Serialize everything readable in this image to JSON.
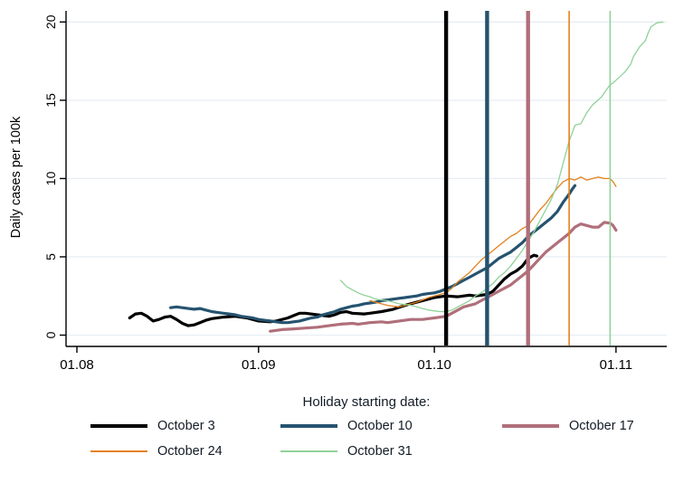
{
  "chart_data": {
    "type": "line",
    "title": "",
    "xlabel": "",
    "ylabel": "Daily cases per 100k",
    "ylim": [
      0,
      20
    ],
    "x_unit": "days since Aug 1 (01.08)",
    "grid": "horizontal",
    "grid_color": "#e7eef3",
    "axis_color": "#000000",
    "legend_title": "Holiday starting date:",
    "legend_position": "bottom",
    "xticks": [
      {
        "day": 0,
        "label": "01.08"
      },
      {
        "day": 31,
        "label": "01.09"
      },
      {
        "day": 61,
        "label": "01.10"
      },
      {
        "day": 92,
        "label": "01.11"
      }
    ],
    "yticks": [
      {
        "value": 0,
        "label": "0"
      },
      {
        "value": 5,
        "label": "5"
      },
      {
        "value": 10,
        "label": "10"
      },
      {
        "value": 15,
        "label": "15"
      },
      {
        "value": 20,
        "label": "20"
      }
    ],
    "series": [
      {
        "name": "October 3",
        "color": "#000000",
        "line_width": "thick",
        "holiday_start_day": 63,
        "points": [
          [
            9,
            1.1
          ],
          [
            10,
            1.35
          ],
          [
            11,
            1.4
          ],
          [
            12,
            1.2
          ],
          [
            13,
            0.9
          ],
          [
            14,
            1.0
          ],
          [
            15,
            1.15
          ],
          [
            16,
            1.2
          ],
          [
            17,
            1.0
          ],
          [
            18,
            0.75
          ],
          [
            19,
            0.6
          ],
          [
            20,
            0.65
          ],
          [
            21,
            0.8
          ],
          [
            22,
            0.95
          ],
          [
            23,
            1.05
          ],
          [
            25,
            1.15
          ],
          [
            27,
            1.2
          ],
          [
            29,
            1.1
          ],
          [
            31,
            0.9
          ],
          [
            33,
            0.85
          ],
          [
            34,
            0.9
          ],
          [
            36,
            1.1
          ],
          [
            37,
            1.25
          ],
          [
            38,
            1.4
          ],
          [
            39,
            1.4
          ],
          [
            41,
            1.3
          ],
          [
            43,
            1.2
          ],
          [
            44,
            1.3
          ],
          [
            45,
            1.45
          ],
          [
            46,
            1.5
          ],
          [
            47,
            1.4
          ],
          [
            49,
            1.35
          ],
          [
            50,
            1.4
          ],
          [
            52,
            1.5
          ],
          [
            54,
            1.65
          ],
          [
            56,
            1.9
          ],
          [
            58,
            2.1
          ],
          [
            60,
            2.3
          ],
          [
            61,
            2.4
          ],
          [
            62,
            2.45
          ],
          [
            63,
            2.5
          ],
          [
            65,
            2.45
          ],
          [
            66,
            2.5
          ],
          [
            67,
            2.55
          ],
          [
            68,
            2.5
          ],
          [
            69,
            2.55
          ],
          [
            70,
            2.6
          ],
          [
            71,
            2.8
          ],
          [
            72,
            3.2
          ],
          [
            73,
            3.6
          ],
          [
            74,
            3.9
          ],
          [
            75,
            4.1
          ],
          [
            76,
            4.4
          ],
          [
            77,
            4.9
          ],
          [
            78,
            5.1
          ],
          [
            78.5,
            5.05
          ]
        ]
      },
      {
        "name": "October 10",
        "color": "#25536f",
        "line_width": "thick",
        "holiday_start_day": 70,
        "points": [
          [
            16,
            1.75
          ],
          [
            17,
            1.8
          ],
          [
            18,
            1.75
          ],
          [
            19,
            1.7
          ],
          [
            20,
            1.65
          ],
          [
            21,
            1.7
          ],
          [
            22,
            1.6
          ],
          [
            23,
            1.5
          ],
          [
            24,
            1.45
          ],
          [
            25,
            1.4
          ],
          [
            26,
            1.35
          ],
          [
            27,
            1.3
          ],
          [
            28,
            1.2
          ],
          [
            29,
            1.15
          ],
          [
            30,
            1.1
          ],
          [
            31,
            1.0
          ],
          [
            32,
            0.95
          ],
          [
            33,
            0.9
          ],
          [
            34,
            0.85
          ],
          [
            35,
            0.8
          ],
          [
            36,
            0.8
          ],
          [
            37,
            0.85
          ],
          [
            38,
            0.9
          ],
          [
            39,
            1.0
          ],
          [
            40,
            1.1
          ],
          [
            41,
            1.15
          ],
          [
            42,
            1.3
          ],
          [
            43,
            1.4
          ],
          [
            44,
            1.5
          ],
          [
            45,
            1.65
          ],
          [
            46,
            1.75
          ],
          [
            47,
            1.85
          ],
          [
            48,
            1.9
          ],
          [
            49,
            2.0
          ],
          [
            50,
            2.05
          ],
          [
            51,
            2.1
          ],
          [
            52,
            2.2
          ],
          [
            53,
            2.25
          ],
          [
            54,
            2.3
          ],
          [
            55,
            2.35
          ],
          [
            56,
            2.4
          ],
          [
            57,
            2.45
          ],
          [
            58,
            2.5
          ],
          [
            59,
            2.6
          ],
          [
            60,
            2.65
          ],
          [
            61,
            2.7
          ],
          [
            62,
            2.8
          ],
          [
            63,
            2.95
          ],
          [
            64,
            3.1
          ],
          [
            65,
            3.3
          ],
          [
            66,
            3.5
          ],
          [
            67,
            3.7
          ],
          [
            68,
            3.9
          ],
          [
            69,
            4.1
          ],
          [
            70,
            4.3
          ],
          [
            71,
            4.6
          ],
          [
            72,
            4.9
          ],
          [
            73,
            5.1
          ],
          [
            74,
            5.3
          ],
          [
            75,
            5.6
          ],
          [
            76,
            5.9
          ],
          [
            77,
            6.3
          ],
          [
            78,
            6.6
          ],
          [
            79,
            6.9
          ],
          [
            80,
            7.2
          ],
          [
            81,
            7.5
          ],
          [
            82,
            7.9
          ],
          [
            83,
            8.5
          ],
          [
            84,
            9.0
          ],
          [
            84.5,
            9.3
          ],
          [
            85,
            9.55
          ]
        ]
      },
      {
        "name": "October 17",
        "color": "#b06f7a",
        "line_width": "thick",
        "holiday_start_day": 77,
        "points": [
          [
            33,
            0.25
          ],
          [
            35,
            0.35
          ],
          [
            37,
            0.4
          ],
          [
            39,
            0.45
          ],
          [
            41,
            0.5
          ],
          [
            43,
            0.6
          ],
          [
            45,
            0.7
          ],
          [
            47,
            0.75
          ],
          [
            48,
            0.7
          ],
          [
            50,
            0.8
          ],
          [
            52,
            0.85
          ],
          [
            53,
            0.8
          ],
          [
            55,
            0.9
          ],
          [
            57,
            1.0
          ],
          [
            59,
            1.0
          ],
          [
            60,
            1.05
          ],
          [
            61,
            1.1
          ],
          [
            62,
            1.15
          ],
          [
            63,
            1.2
          ],
          [
            64,
            1.4
          ],
          [
            65,
            1.6
          ],
          [
            66,
            1.8
          ],
          [
            67,
            1.9
          ],
          [
            68,
            2.0
          ],
          [
            69,
            2.2
          ],
          [
            70,
            2.4
          ],
          [
            71,
            2.6
          ],
          [
            72,
            2.8
          ],
          [
            73,
            3.0
          ],
          [
            74,
            3.2
          ],
          [
            75,
            3.5
          ],
          [
            76,
            3.8
          ],
          [
            77,
            4.1
          ],
          [
            78,
            4.5
          ],
          [
            79,
            4.9
          ],
          [
            80,
            5.3
          ],
          [
            81,
            5.6
          ],
          [
            82,
            5.9
          ],
          [
            83,
            6.2
          ],
          [
            84,
            6.5
          ],
          [
            85,
            6.9
          ],
          [
            86,
            7.1
          ],
          [
            87,
            7.0
          ],
          [
            88,
            6.9
          ],
          [
            89,
            6.9
          ],
          [
            90,
            7.2
          ],
          [
            91,
            7.15
          ],
          [
            91.5,
            7.0
          ],
          [
            92,
            6.7
          ]
        ]
      },
      {
        "name": "October 24",
        "color": "#e5821c",
        "line_width": "thin",
        "holiday_start_day": 84,
        "points": [
          [
            50,
            2.2
          ],
          [
            51,
            2.1
          ],
          [
            52,
            2.0
          ],
          [
            53,
            1.9
          ],
          [
            54,
            1.85
          ],
          [
            55,
            1.8
          ],
          [
            56,
            1.9
          ],
          [
            57,
            2.0
          ],
          [
            58,
            2.1
          ],
          [
            59,
            2.25
          ],
          [
            60,
            2.4
          ],
          [
            61,
            2.5
          ],
          [
            62,
            2.6
          ],
          [
            63,
            2.7
          ],
          [
            64,
            3.0
          ],
          [
            65,
            3.4
          ],
          [
            66,
            3.7
          ],
          [
            67,
            4.0
          ],
          [
            68,
            4.4
          ],
          [
            69,
            4.8
          ],
          [
            70,
            5.1
          ],
          [
            71,
            5.4
          ],
          [
            72,
            5.7
          ],
          [
            73,
            6.0
          ],
          [
            74,
            6.3
          ],
          [
            75,
            6.5
          ],
          [
            76,
            6.8
          ],
          [
            77,
            7.0
          ],
          [
            78,
            7.5
          ],
          [
            79,
            8.0
          ],
          [
            80,
            8.4
          ],
          [
            81,
            8.9
          ],
          [
            82,
            9.4
          ],
          [
            83,
            9.8
          ],
          [
            84,
            10.0
          ],
          [
            85,
            9.9
          ],
          [
            86,
            10.1
          ],
          [
            87,
            9.9
          ],
          [
            88,
            10.0
          ],
          [
            89,
            10.1
          ],
          [
            90,
            10.0
          ],
          [
            91,
            10.0
          ],
          [
            91.5,
            9.8
          ],
          [
            92,
            9.5
          ]
        ]
      },
      {
        "name": "October 31",
        "color": "#90d298",
        "line_width": "thin",
        "holiday_start_day": 91,
        "points": [
          [
            45,
            3.5
          ],
          [
            46,
            3.1
          ],
          [
            47,
            2.9
          ],
          [
            48,
            2.7
          ],
          [
            49,
            2.55
          ],
          [
            50,
            2.45
          ],
          [
            51,
            2.3
          ],
          [
            52,
            2.25
          ],
          [
            53,
            2.2
          ],
          [
            54,
            2.1
          ],
          [
            55,
            2.0
          ],
          [
            56,
            1.95
          ],
          [
            57,
            1.9
          ],
          [
            58,
            1.8
          ],
          [
            59,
            1.7
          ],
          [
            60,
            1.6
          ],
          [
            61,
            1.55
          ],
          [
            62,
            1.5
          ],
          [
            63,
            1.5
          ],
          [
            64,
            1.6
          ],
          [
            65,
            1.8
          ],
          [
            66,
            2.0
          ],
          [
            67,
            2.2
          ],
          [
            68,
            2.5
          ],
          [
            69,
            2.7
          ],
          [
            70,
            3.0
          ],
          [
            71,
            3.3
          ],
          [
            72,
            3.7
          ],
          [
            73,
            4.0
          ],
          [
            74,
            4.4
          ],
          [
            75,
            4.9
          ],
          [
            76,
            5.4
          ],
          [
            77,
            6.0
          ],
          [
            78,
            6.6
          ],
          [
            79,
            7.3
          ],
          [
            80,
            8.0
          ],
          [
            81,
            8.7
          ],
          [
            82,
            9.6
          ],
          [
            83,
            11.0
          ],
          [
            84,
            12.4
          ],
          [
            84.6,
            13.0
          ],
          [
            85,
            13.4
          ],
          [
            86,
            13.5
          ],
          [
            87,
            14.2
          ],
          [
            88,
            14.7
          ],
          [
            89.5,
            15.2
          ],
          [
            91,
            16.0
          ],
          [
            91.5,
            16.1
          ],
          [
            93.5,
            16.8
          ],
          [
            94.5,
            17.3
          ],
          [
            95,
            17.8
          ],
          [
            96,
            18.4
          ],
          [
            97,
            18.8
          ],
          [
            97.5,
            19.3
          ],
          [
            98,
            19.7
          ],
          [
            99,
            19.95
          ],
          [
            100,
            20.0
          ]
        ]
      }
    ]
  }
}
